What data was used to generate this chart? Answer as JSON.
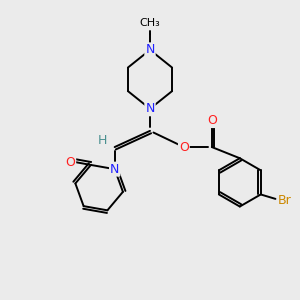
{
  "bg_color": "#ebebeb",
  "atom_colors": {
    "C": "#000000",
    "N": "#2020ff",
    "O": "#ff2020",
    "Br": "#cc8800",
    "H": "#4a9090"
  },
  "bond_color": "#000000",
  "bond_width": 1.4
}
